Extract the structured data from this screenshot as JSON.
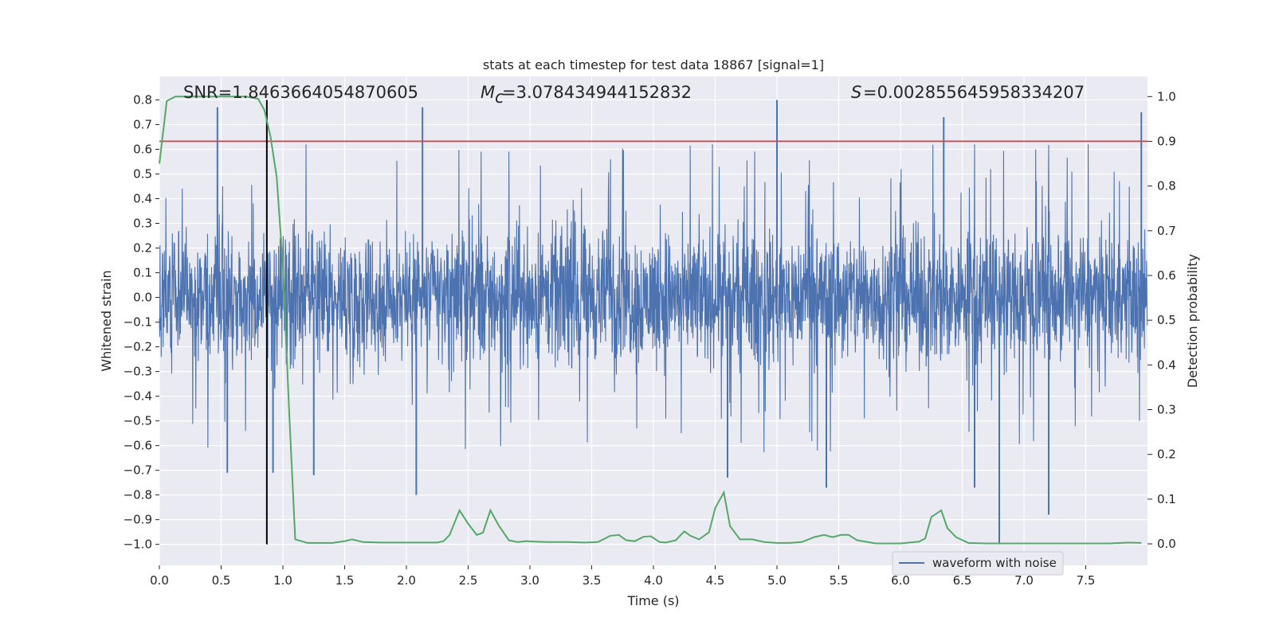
{
  "chart_data": {
    "type": "line",
    "title": "stats at each timestep for test data 18867 [signal=1]",
    "xlabel": "Time (s)",
    "ylabel": "Whitened strain",
    "ylabel_right": "Detection probability",
    "xlim": [
      0.0,
      8.0
    ],
    "ylim": [
      -1.085,
      0.895
    ],
    "ylim_right": [
      -0.048,
      1.045
    ],
    "xticks": [
      "0.0",
      "0.5",
      "1.0",
      "1.5",
      "2.0",
      "2.5",
      "3.0",
      "3.5",
      "4.0",
      "4.5",
      "5.0",
      "5.5",
      "6.0",
      "6.5",
      "7.0",
      "7.5"
    ],
    "yticks": [
      "0.8",
      "0.7",
      "0.6",
      "0.5",
      "0.4",
      "0.3",
      "0.2",
      "0.1",
      "0.0",
      "−0.1",
      "−0.2",
      "−0.3",
      "−0.4",
      "−0.5",
      "−0.6",
      "−0.7",
      "−0.8",
      "−0.9",
      "−1.0"
    ],
    "yticks_right": [
      "1.0",
      "0.9",
      "0.8",
      "0.7",
      "0.6",
      "0.5",
      "0.4",
      "0.3",
      "0.2",
      "0.1",
      "0.0"
    ],
    "annotations": {
      "snr": "SNR=1.8463664054870605",
      "mc": "=3.078434944152832",
      "s": "=0.002855645958334207"
    },
    "threshold": {
      "y_right": 0.9,
      "color": "#c44e52"
    },
    "marker_line": {
      "x": 0.87,
      "y_from": -1.0,
      "y_to": 0.8,
      "color": "#000000"
    },
    "legend": {
      "label": "waveform with noise",
      "placement": "lower right"
    },
    "series": [
      {
        "name": "waveform with noise",
        "color": "#4c72b0",
        "axis": "left",
        "note": "dense noise, |strain| mostly within 0.3, spikes up to ~0.8 and down to ~-1.0",
        "spikes": [
          {
            "x": 0.47,
            "y": 0.77
          },
          {
            "x": 5.0,
            "y": 0.8
          },
          {
            "x": 7.95,
            "y": 0.75
          },
          {
            "x": 2.13,
            "y": 0.77
          },
          {
            "x": 6.35,
            "y": 0.73
          },
          {
            "x": 6.8,
            "y": -1.0
          },
          {
            "x": 7.2,
            "y": -0.88
          },
          {
            "x": 2.08,
            "y": -0.8
          },
          {
            "x": 5.4,
            "y": -0.77
          },
          {
            "x": 0.55,
            "y": -0.71
          },
          {
            "x": 0.92,
            "y": -0.71
          },
          {
            "x": 1.25,
            "y": -0.72
          },
          {
            "x": 4.6,
            "y": -0.73
          },
          {
            "x": 6.6,
            "y": -0.77
          }
        ]
      },
      {
        "name": "",
        "color": "#55a868",
        "axis": "right",
        "x": [
          0.0,
          0.06,
          0.13,
          0.2,
          0.3,
          0.4,
          0.5,
          0.6,
          0.7,
          0.8,
          0.85,
          0.9,
          0.95,
          1.0,
          1.05,
          1.1,
          1.2,
          1.3,
          1.4,
          1.5,
          1.56,
          1.65,
          1.8,
          1.95,
          2.1,
          2.25,
          2.3,
          2.35,
          2.43,
          2.5,
          2.57,
          2.62,
          2.68,
          2.75,
          2.83,
          2.9,
          2.97,
          3.05,
          3.15,
          3.3,
          3.45,
          3.55,
          3.65,
          3.72,
          3.78,
          3.85,
          3.92,
          3.98,
          4.05,
          4.1,
          4.18,
          4.25,
          4.3,
          4.37,
          4.45,
          4.5,
          4.57,
          4.62,
          4.7,
          4.8,
          4.9,
          5.0,
          5.1,
          5.2,
          5.3,
          5.38,
          5.45,
          5.52,
          5.58,
          5.65,
          5.8,
          6.0,
          6.15,
          6.2,
          6.25,
          6.33,
          6.38,
          6.45,
          6.55,
          6.7,
          6.9,
          7.1,
          7.3,
          7.5,
          7.7,
          7.85,
          7.95
        ],
        "y": [
          0.85,
          0.99,
          1.0,
          1.0,
          1.0,
          1.0,
          1.0,
          1.0,
          1.0,
          0.995,
          0.97,
          0.91,
          0.82,
          0.62,
          0.3,
          0.01,
          0.002,
          0.002,
          0.002,
          0.006,
          0.01,
          0.004,
          0.003,
          0.003,
          0.003,
          0.003,
          0.006,
          0.02,
          0.075,
          0.045,
          0.02,
          0.025,
          0.075,
          0.04,
          0.008,
          0.004,
          0.006,
          0.005,
          0.004,
          0.004,
          0.003,
          0.004,
          0.018,
          0.02,
          0.008,
          0.006,
          0.016,
          0.017,
          0.004,
          0.003,
          0.008,
          0.028,
          0.018,
          0.01,
          0.026,
          0.08,
          0.115,
          0.04,
          0.01,
          0.01,
          0.004,
          0.002,
          0.002,
          0.004,
          0.015,
          0.02,
          0.015,
          0.02,
          0.02,
          0.008,
          0.001,
          0.001,
          0.005,
          0.012,
          0.06,
          0.075,
          0.035,
          0.015,
          0.002,
          0.001,
          0.001,
          0.001,
          0.001,
          0.001,
          0.001,
          0.003,
          0.002
        ]
      }
    ]
  }
}
